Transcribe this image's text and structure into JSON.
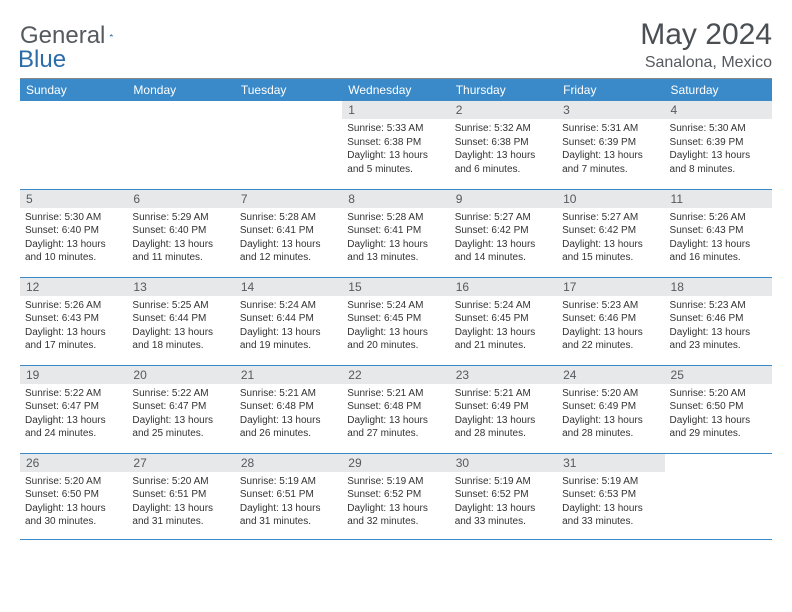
{
  "brand": {
    "text1": "General",
    "text2": "Blue",
    "icon_color": "#2c6ca8"
  },
  "title": "May 2024",
  "location": "Sanalona, Mexico",
  "accent_color": "#3a8ac9",
  "header_bg": "#3a8ac9",
  "day_bar_bg": "#e6e8ea",
  "days": [
    "Sunday",
    "Monday",
    "Tuesday",
    "Wednesday",
    "Thursday",
    "Friday",
    "Saturday"
  ],
  "cells": [
    [
      {
        "n": "",
        "sr": "",
        "ss": "",
        "dl": ""
      },
      {
        "n": "",
        "sr": "",
        "ss": "",
        "dl": ""
      },
      {
        "n": "",
        "sr": "",
        "ss": "",
        "dl": ""
      },
      {
        "n": "1",
        "sr": "5:33 AM",
        "ss": "6:38 PM",
        "dl": "13 hours and 5 minutes."
      },
      {
        "n": "2",
        "sr": "5:32 AM",
        "ss": "6:38 PM",
        "dl": "13 hours and 6 minutes."
      },
      {
        "n": "3",
        "sr": "5:31 AM",
        "ss": "6:39 PM",
        "dl": "13 hours and 7 minutes."
      },
      {
        "n": "4",
        "sr": "5:30 AM",
        "ss": "6:39 PM",
        "dl": "13 hours and 8 minutes."
      }
    ],
    [
      {
        "n": "5",
        "sr": "5:30 AM",
        "ss": "6:40 PM",
        "dl": "13 hours and 10 minutes."
      },
      {
        "n": "6",
        "sr": "5:29 AM",
        "ss": "6:40 PM",
        "dl": "13 hours and 11 minutes."
      },
      {
        "n": "7",
        "sr": "5:28 AM",
        "ss": "6:41 PM",
        "dl": "13 hours and 12 minutes."
      },
      {
        "n": "8",
        "sr": "5:28 AM",
        "ss": "6:41 PM",
        "dl": "13 hours and 13 minutes."
      },
      {
        "n": "9",
        "sr": "5:27 AM",
        "ss": "6:42 PM",
        "dl": "13 hours and 14 minutes."
      },
      {
        "n": "10",
        "sr": "5:27 AM",
        "ss": "6:42 PM",
        "dl": "13 hours and 15 minutes."
      },
      {
        "n": "11",
        "sr": "5:26 AM",
        "ss": "6:43 PM",
        "dl": "13 hours and 16 minutes."
      }
    ],
    [
      {
        "n": "12",
        "sr": "5:26 AM",
        "ss": "6:43 PM",
        "dl": "13 hours and 17 minutes."
      },
      {
        "n": "13",
        "sr": "5:25 AM",
        "ss": "6:44 PM",
        "dl": "13 hours and 18 minutes."
      },
      {
        "n": "14",
        "sr": "5:24 AM",
        "ss": "6:44 PM",
        "dl": "13 hours and 19 minutes."
      },
      {
        "n": "15",
        "sr": "5:24 AM",
        "ss": "6:45 PM",
        "dl": "13 hours and 20 minutes."
      },
      {
        "n": "16",
        "sr": "5:24 AM",
        "ss": "6:45 PM",
        "dl": "13 hours and 21 minutes."
      },
      {
        "n": "17",
        "sr": "5:23 AM",
        "ss": "6:46 PM",
        "dl": "13 hours and 22 minutes."
      },
      {
        "n": "18",
        "sr": "5:23 AM",
        "ss": "6:46 PM",
        "dl": "13 hours and 23 minutes."
      }
    ],
    [
      {
        "n": "19",
        "sr": "5:22 AM",
        "ss": "6:47 PM",
        "dl": "13 hours and 24 minutes."
      },
      {
        "n": "20",
        "sr": "5:22 AM",
        "ss": "6:47 PM",
        "dl": "13 hours and 25 minutes."
      },
      {
        "n": "21",
        "sr": "5:21 AM",
        "ss": "6:48 PM",
        "dl": "13 hours and 26 minutes."
      },
      {
        "n": "22",
        "sr": "5:21 AM",
        "ss": "6:48 PM",
        "dl": "13 hours and 27 minutes."
      },
      {
        "n": "23",
        "sr": "5:21 AM",
        "ss": "6:49 PM",
        "dl": "13 hours and 28 minutes."
      },
      {
        "n": "24",
        "sr": "5:20 AM",
        "ss": "6:49 PM",
        "dl": "13 hours and 28 minutes."
      },
      {
        "n": "25",
        "sr": "5:20 AM",
        "ss": "6:50 PM",
        "dl": "13 hours and 29 minutes."
      }
    ],
    [
      {
        "n": "26",
        "sr": "5:20 AM",
        "ss": "6:50 PM",
        "dl": "13 hours and 30 minutes."
      },
      {
        "n": "27",
        "sr": "5:20 AM",
        "ss": "6:51 PM",
        "dl": "13 hours and 31 minutes."
      },
      {
        "n": "28",
        "sr": "5:19 AM",
        "ss": "6:51 PM",
        "dl": "13 hours and 31 minutes."
      },
      {
        "n": "29",
        "sr": "5:19 AM",
        "ss": "6:52 PM",
        "dl": "13 hours and 32 minutes."
      },
      {
        "n": "30",
        "sr": "5:19 AM",
        "ss": "6:52 PM",
        "dl": "13 hours and 33 minutes."
      },
      {
        "n": "31",
        "sr": "5:19 AM",
        "ss": "6:53 PM",
        "dl": "13 hours and 33 minutes."
      },
      {
        "n": "",
        "sr": "",
        "ss": "",
        "dl": ""
      }
    ]
  ],
  "labels": {
    "sunrise": "Sunrise:",
    "sunset": "Sunset:",
    "daylight": "Daylight:"
  }
}
